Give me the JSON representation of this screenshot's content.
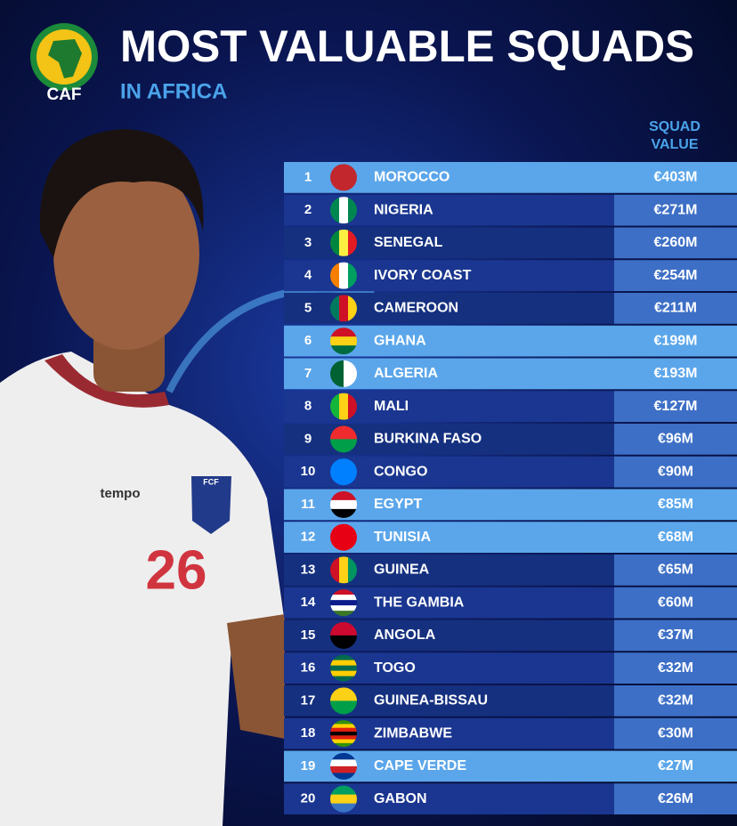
{
  "header": {
    "logo": "CAF",
    "title": "MOST VALUABLE SQUADS",
    "subtitle": "IN AFRICA"
  },
  "photo": {
    "shirt_number": "26",
    "sponsor": "tempo",
    "badge": "FCF"
  },
  "table": {
    "column_header": [
      "SQUAD",
      "VALUE"
    ],
    "rows": [
      {
        "rank": 1,
        "country": "MOROCCO",
        "value": "€403M",
        "highlight": true,
        "flag": {
          "dir": "v",
          "colors": [
            "#c1272d"
          ]
        }
      },
      {
        "rank": 2,
        "country": "NIGERIA",
        "value": "€271M",
        "highlight": false,
        "flag": {
          "dir": "v",
          "colors": [
            "#008751",
            "#ffffff",
            "#008751"
          ]
        }
      },
      {
        "rank": 3,
        "country": "SENEGAL",
        "value": "€260M",
        "highlight": false,
        "flag": {
          "dir": "v",
          "colors": [
            "#00853f",
            "#fdef42",
            "#e31b23"
          ]
        }
      },
      {
        "rank": 4,
        "country": "IVORY COAST",
        "value": "€254M",
        "highlight": false,
        "flag": {
          "dir": "v",
          "colors": [
            "#f77f00",
            "#ffffff",
            "#009e60"
          ]
        }
      },
      {
        "rank": 5,
        "country": "CAMEROON",
        "value": "€211M",
        "highlight": false,
        "flag": {
          "dir": "v",
          "colors": [
            "#007a5e",
            "#ce1126",
            "#fcd116"
          ]
        }
      },
      {
        "rank": 6,
        "country": "GHANA",
        "value": "€199M",
        "highlight": true,
        "flag": {
          "dir": "h",
          "colors": [
            "#ce1126",
            "#fcd116",
            "#006b3f"
          ]
        }
      },
      {
        "rank": 7,
        "country": "ALGERIA",
        "value": "€193M",
        "highlight": true,
        "flag": {
          "dir": "v",
          "colors": [
            "#006233",
            "#ffffff"
          ]
        }
      },
      {
        "rank": 8,
        "country": "MALI",
        "value": "€127M",
        "highlight": false,
        "flag": {
          "dir": "v",
          "colors": [
            "#14b53a",
            "#fcd116",
            "#ce1126"
          ]
        }
      },
      {
        "rank": 9,
        "country": "BURKINA FASO",
        "value": "€96M",
        "highlight": false,
        "flag": {
          "dir": "h",
          "colors": [
            "#ef2b2d",
            "#009e49"
          ]
        }
      },
      {
        "rank": 10,
        "country": "CONGO",
        "value": "€90M",
        "highlight": false,
        "flag": {
          "dir": "h",
          "colors": [
            "#007fff"
          ]
        }
      },
      {
        "rank": 11,
        "country": "EGYPT",
        "value": "€85M",
        "highlight": true,
        "flag": {
          "dir": "h",
          "colors": [
            "#ce1126",
            "#ffffff",
            "#000000"
          ]
        }
      },
      {
        "rank": 12,
        "country": "TUNISIA",
        "value": "€68M",
        "highlight": true,
        "flag": {
          "dir": "h",
          "colors": [
            "#e70013"
          ]
        }
      },
      {
        "rank": 13,
        "country": "GUINEA",
        "value": "€65M",
        "highlight": false,
        "flag": {
          "dir": "v",
          "colors": [
            "#ce1126",
            "#fcd116",
            "#009460"
          ]
        }
      },
      {
        "rank": 14,
        "country": "THE GAMBIA",
        "value": "€60M",
        "highlight": false,
        "flag": {
          "dir": "h",
          "colors": [
            "#ce1126",
            "#ffffff",
            "#0c1c8c",
            "#ffffff",
            "#3a7728"
          ]
        }
      },
      {
        "rank": 15,
        "country": "ANGOLA",
        "value": "€37M",
        "highlight": false,
        "flag": {
          "dir": "h",
          "colors": [
            "#cc092f",
            "#000000"
          ]
        }
      },
      {
        "rank": 16,
        "country": "TOGO",
        "value": "€32M",
        "highlight": false,
        "flag": {
          "dir": "h",
          "colors": [
            "#006a4e",
            "#ffce00",
            "#006a4e",
            "#ffce00",
            "#006a4e"
          ]
        }
      },
      {
        "rank": 17,
        "country": "GUINEA-BISSAU",
        "value": "€32M",
        "highlight": false,
        "flag": {
          "dir": "h",
          "colors": [
            "#fcd116",
            "#009e49"
          ]
        }
      },
      {
        "rank": 18,
        "country": "ZIMBABWE",
        "value": "€30M",
        "highlight": false,
        "flag": {
          "dir": "h",
          "colors": [
            "#319208",
            "#ffd200",
            "#de2010",
            "#000000",
            "#de2010",
            "#ffd200",
            "#319208"
          ]
        }
      },
      {
        "rank": 19,
        "country": "CAPE VERDE",
        "value": "€27M",
        "highlight": true,
        "flag": {
          "dir": "h",
          "colors": [
            "#003893",
            "#ffffff",
            "#cf2027",
            "#003893"
          ]
        }
      },
      {
        "rank": 20,
        "country": "GABON",
        "value": "€26M",
        "highlight": false,
        "flag": {
          "dir": "h",
          "colors": [
            "#009e60",
            "#fcd116",
            "#3a75c4"
          ]
        }
      }
    ]
  }
}
